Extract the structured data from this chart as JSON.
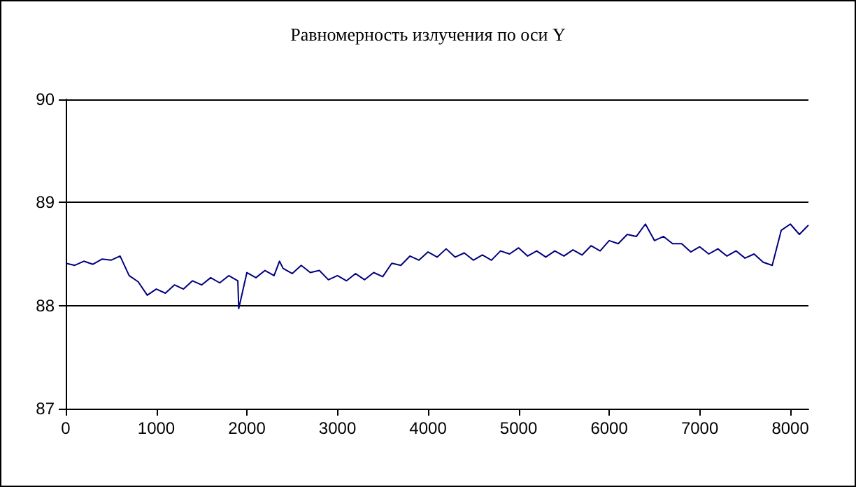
{
  "chart_data": {
    "type": "line",
    "title": "Равномерность излучения по оси Y",
    "x": [
      0,
      100,
      200,
      300,
      400,
      500,
      600,
      700,
      800,
      900,
      1000,
      1100,
      1200,
      1300,
      1400,
      1500,
      1600,
      1700,
      1800,
      1900,
      1910,
      2000,
      2100,
      2200,
      2300,
      2360,
      2400,
      2500,
      2600,
      2700,
      2800,
      2900,
      3000,
      3100,
      3200,
      3300,
      3400,
      3500,
      3600,
      3700,
      3800,
      3900,
      4000,
      4100,
      4200,
      4300,
      4400,
      4500,
      4600,
      4700,
      4800,
      4900,
      5000,
      5100,
      5200,
      5300,
      5400,
      5500,
      5600,
      5700,
      5800,
      5900,
      6000,
      6100,
      6200,
      6300,
      6400,
      6500,
      6600,
      6700,
      6800,
      6900,
      7000,
      7100,
      7200,
      7300,
      7400,
      7500,
      7600,
      7700,
      7800,
      7900,
      8000,
      8100,
      8200
    ],
    "series": [
      {
        "color": "#000080",
        "values": [
          88.41,
          88.39,
          88.43,
          88.4,
          88.45,
          88.44,
          88.48,
          88.29,
          88.23,
          88.1,
          88.16,
          88.12,
          88.2,
          88.16,
          88.24,
          88.2,
          88.27,
          88.22,
          88.29,
          88.24,
          87.97,
          88.32,
          88.27,
          88.34,
          88.29,
          88.43,
          88.36,
          88.31,
          88.39,
          88.32,
          88.34,
          88.25,
          88.29,
          88.24,
          88.31,
          88.25,
          88.32,
          88.28,
          88.41,
          88.39,
          88.48,
          88.44,
          88.52,
          88.47,
          88.55,
          88.47,
          88.51,
          88.44,
          88.49,
          88.44,
          88.53,
          88.5,
          88.56,
          88.48,
          88.53,
          88.47,
          88.53,
          88.48,
          88.54,
          88.49,
          88.58,
          88.53,
          88.63,
          88.6,
          88.69,
          88.67,
          88.79,
          88.63,
          88.67,
          88.6,
          88.6,
          88.52,
          88.57,
          88.5,
          88.55,
          88.48,
          88.53,
          88.46,
          88.5,
          88.42,
          88.39,
          88.73,
          88.79,
          88.69,
          88.78
        ]
      }
    ],
    "xlim": [
      0,
      8200
    ],
    "xticks": [
      0,
      1000,
      2000,
      3000,
      4000,
      5000,
      6000,
      7000,
      8000
    ],
    "ylim": [
      87,
      90
    ],
    "yticks": [
      87,
      88,
      89,
      90
    ],
    "grid": "y",
    "marker": "none",
    "line_style": "solid"
  }
}
